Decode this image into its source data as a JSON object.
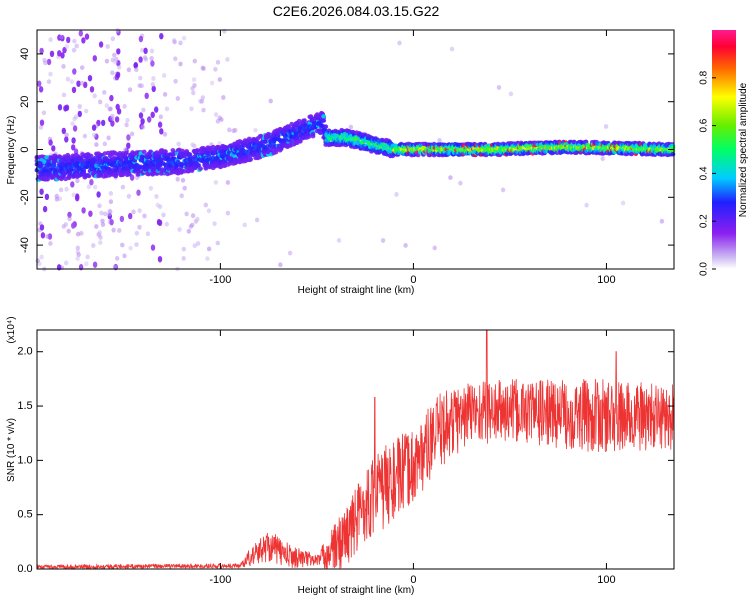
{
  "title": "C2E6.2026.084.03.15.G22",
  "chart_data": [
    {
      "type": "heatmap",
      "name": "spectrogram",
      "xlabel": "Height of straight line (km)",
      "ylabel": "Frequency (Hz)",
      "xlim": [
        -195,
        135
      ],
      "ylim": [
        -50,
        50
      ],
      "xticks": [
        -100,
        0,
        100
      ],
      "yticks": [
        -40,
        -20,
        0,
        20,
        40
      ],
      "ridge": [
        {
          "x": -195,
          "y": -8
        },
        {
          "x": -150,
          "y": -6
        },
        {
          "x": -120,
          "y": -5
        },
        {
          "x": -100,
          "y": -3
        },
        {
          "x": -75,
          "y": 2
        },
        {
          "x": -55,
          "y": 9
        },
        {
          "x": -47,
          "y": 11
        },
        {
          "x": -45,
          "y": 5
        },
        {
          "x": -35,
          "y": 5
        },
        {
          "x": -20,
          "y": 2
        },
        {
          "x": -10,
          "y": 0
        },
        {
          "x": 0,
          "y": 0
        },
        {
          "x": 40,
          "y": 0
        },
        {
          "x": 80,
          "y": 1
        },
        {
          "x": 135,
          "y": 0
        }
      ],
      "colorbar": {
        "label": "Normalized spectral amplitude",
        "range": [
          0,
          1
        ],
        "ticks": [
          0.0,
          0.2,
          0.4,
          0.6,
          0.8
        ],
        "tick_labels": [
          "0.0",
          "0.2",
          "0.4",
          "0.6",
          "0.8"
        ]
      }
    },
    {
      "type": "line",
      "name": "snr",
      "xlabel": "Height of straight line (km)",
      "ylabel": "SNR (10 * v/v)",
      "scale_label": "(x10⁴)",
      "xlim": [
        -195,
        135
      ],
      "ylim": [
        0,
        2.2
      ],
      "xticks": [
        -100,
        0,
        100
      ],
      "yticks": [
        0.0,
        0.5,
        1.0,
        1.5,
        2.0
      ],
      "ytick_labels": [
        "0.0",
        "0.5",
        "1.0",
        "1.5",
        "2.0"
      ],
      "color": "#ee3333",
      "envelope": [
        {
          "x": -195,
          "mean": 0.02,
          "spread": 0.02
        },
        {
          "x": -90,
          "mean": 0.03,
          "spread": 0.02
        },
        {
          "x": -85,
          "mean": 0.1,
          "spread": 0.08
        },
        {
          "x": -75,
          "mean": 0.22,
          "spread": 0.15
        },
        {
          "x": -65,
          "mean": 0.12,
          "spread": 0.12
        },
        {
          "x": -50,
          "mean": 0.08,
          "spread": 0.05
        },
        {
          "x": -40,
          "mean": 0.2,
          "spread": 0.25
        },
        {
          "x": -33,
          "mean": 0.35,
          "spread": 0.3
        },
        {
          "x": -25,
          "mean": 0.6,
          "spread": 0.35
        },
        {
          "x": -15,
          "mean": 0.75,
          "spread": 0.4
        },
        {
          "x": 0,
          "mean": 0.95,
          "spread": 0.35
        },
        {
          "x": 15,
          "mean": 1.3,
          "spread": 0.35
        },
        {
          "x": 30,
          "mean": 1.45,
          "spread": 0.3
        },
        {
          "x": 60,
          "mean": 1.45,
          "spread": 0.3
        },
        {
          "x": 100,
          "mean": 1.4,
          "spread": 0.35
        },
        {
          "x": 135,
          "mean": 1.4,
          "spread": 0.3
        }
      ],
      "peaks": [
        {
          "x": -20,
          "y": 1.58
        },
        {
          "x": 38,
          "y": 2.2
        },
        {
          "x": 105,
          "y": 2.0
        }
      ]
    }
  ]
}
